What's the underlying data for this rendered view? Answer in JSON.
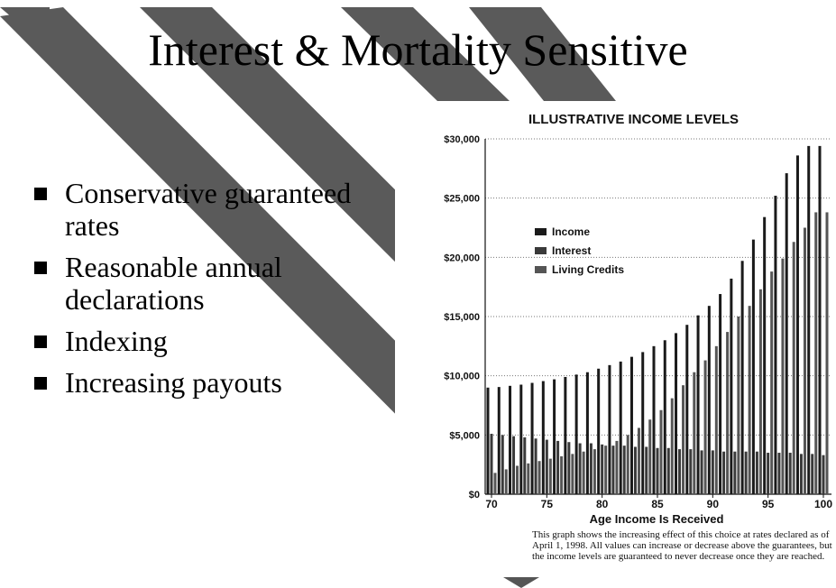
{
  "slide": {
    "title": "Interest & Mortality Sensitive",
    "bullets": [
      "Conservative guaranteed rates",
      "Reasonable annual declarations",
      "Indexing",
      "Increasing payouts"
    ]
  },
  "colors": {
    "stripe": "#5a5a5a",
    "income": "#1a1a1a",
    "interest": "#3a3a3a",
    "living_credits": "#555555"
  },
  "chart_data": {
    "type": "bar",
    "title": "ILLUSTRATIVE INCOME LEVELS",
    "xlabel": "Age Income Is Received",
    "ylabel": "",
    "ylim": [
      0,
      30000
    ],
    "y_ticks": [
      "$30,000",
      "$25,000",
      "$20,000",
      "$15,000",
      "$10,000",
      "$5,000",
      "$0"
    ],
    "y_tick_values": [
      30000,
      25000,
      20000,
      15000,
      10000,
      5000,
      0
    ],
    "x_ticks": [
      "70",
      "75",
      "80",
      "85",
      "90",
      "95",
      "100"
    ],
    "x_tick_values": [
      70,
      75,
      80,
      85,
      90,
      95,
      100
    ],
    "grid": "horizontal dotted",
    "legend_position": "upper-left",
    "categories": [
      70,
      71,
      72,
      73,
      74,
      75,
      76,
      77,
      78,
      79,
      80,
      81,
      82,
      83,
      84,
      85,
      86,
      87,
      88,
      89,
      90,
      91,
      92,
      93,
      94,
      95,
      96,
      97,
      98,
      99,
      100
    ],
    "series": [
      {
        "name": "Income",
        "values": [
          9000,
          9050,
          9150,
          9250,
          9400,
          9550,
          9700,
          9900,
          10100,
          10300,
          10600,
          10900,
          11200,
          11600,
          12000,
          12500,
          13000,
          13600,
          14300,
          15100,
          15900,
          16900,
          18200,
          19700,
          21500,
          23400,
          25200,
          27100,
          28600,
          29400,
          29400
        ]
      },
      {
        "name": "Interest",
        "values": [
          5100,
          5000,
          4900,
          4800,
          4700,
          4600,
          4500,
          4400,
          4300,
          4300,
          4200,
          4100,
          4100,
          4000,
          4000,
          3900,
          3900,
          3800,
          3800,
          3700,
          3700,
          3600,
          3600,
          3600,
          3600,
          3500,
          3500,
          3500,
          3400,
          3400,
          3300
        ]
      },
      {
        "name": "Living Credits",
        "values": [
          1800,
          2100,
          2400,
          2600,
          2800,
          3000,
          3200,
          3400,
          3600,
          3800,
          4100,
          4500,
          5000,
          5600,
          6300,
          7100,
          8100,
          9200,
          10300,
          11300,
          12500,
          13700,
          15000,
          15900,
          17300,
          18800,
          19900,
          21300,
          22500,
          23800,
          23800
        ]
      }
    ],
    "note": "This graph shows the increasing effect of this choice at rates declared as of April 1, 1998. All values can increase or decrease above the guarantees, but the income levels are guaranteed to never decrease once they are reached."
  }
}
